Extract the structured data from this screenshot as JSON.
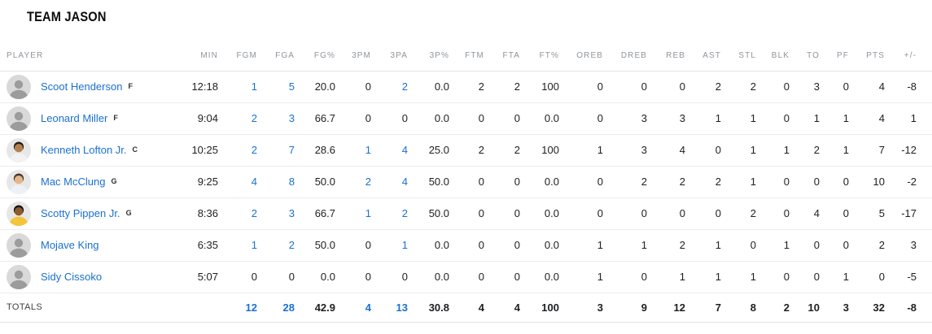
{
  "team": {
    "title": "TEAM JASON"
  },
  "colors": {
    "link_blue": "#1a70d2",
    "header_gray": "#90959b",
    "text_dark": "#1c1e21",
    "row_border": "#ececec"
  },
  "table": {
    "columns": [
      {
        "key": "player",
        "label": "PLAYER"
      },
      {
        "key": "min",
        "label": "MIN"
      },
      {
        "key": "fgm",
        "label": "FGM"
      },
      {
        "key": "fga",
        "label": "FGA"
      },
      {
        "key": "fgpct",
        "label": "FG%"
      },
      {
        "key": "tpm",
        "label": "3PM"
      },
      {
        "key": "tpa",
        "label": "3PA"
      },
      {
        "key": "tppct",
        "label": "3P%"
      },
      {
        "key": "ftm",
        "label": "FTM"
      },
      {
        "key": "fta",
        "label": "FTA"
      },
      {
        "key": "ftpct",
        "label": "FT%"
      },
      {
        "key": "oreb",
        "label": "OREB"
      },
      {
        "key": "dreb",
        "label": "DREB"
      },
      {
        "key": "reb",
        "label": "REB"
      },
      {
        "key": "ast",
        "label": "AST"
      },
      {
        "key": "stl",
        "label": "STL"
      },
      {
        "key": "blk",
        "label": "BLK"
      },
      {
        "key": "to",
        "label": "TO"
      },
      {
        "key": "pf",
        "label": "PF"
      },
      {
        "key": "pts",
        "label": "PTS"
      },
      {
        "key": "plusminus",
        "label": "+/-"
      }
    ],
    "players": [
      {
        "name": "Scoot Henderson",
        "position": "F",
        "avatar": {
          "type": "generic"
        },
        "stats": [
          "12:18",
          "1",
          "5",
          "20.0",
          "0",
          "2",
          "0.0",
          "2",
          "2",
          "100",
          "0",
          "0",
          "0",
          "2",
          "2",
          "0",
          "3",
          "0",
          "4",
          "-8"
        ]
      },
      {
        "name": "Leonard Miller",
        "position": "F",
        "avatar": {
          "type": "generic"
        },
        "stats": [
          "9:04",
          "2",
          "3",
          "66.7",
          "0",
          "0",
          "0.0",
          "0",
          "0",
          "0.0",
          "0",
          "3",
          "3",
          "1",
          "1",
          "0",
          "1",
          "1",
          "4",
          "1"
        ]
      },
      {
        "name": "Kenneth Lofton Jr.",
        "position": "C",
        "avatar": {
          "type": "photo",
          "skin": "#b5804f",
          "hair": "#1f1f1f",
          "jersey": "#f2f2f2"
        },
        "stats": [
          "10:25",
          "2",
          "7",
          "28.6",
          "1",
          "4",
          "25.0",
          "2",
          "2",
          "100",
          "1",
          "3",
          "4",
          "0",
          "1",
          "1",
          "2",
          "1",
          "7",
          "-12"
        ]
      },
      {
        "name": "Mac McClung",
        "position": "G",
        "avatar": {
          "type": "photo",
          "skin": "#e3b68c",
          "hair": "#4a3524",
          "jersey": "#eef1f6"
        },
        "stats": [
          "9:25",
          "4",
          "8",
          "50.0",
          "2",
          "4",
          "50.0",
          "0",
          "0",
          "0.0",
          "0",
          "2",
          "2",
          "2",
          "1",
          "0",
          "0",
          "0",
          "10",
          "-2"
        ]
      },
      {
        "name": "Scotty Pippen Jr.",
        "position": "G",
        "avatar": {
          "type": "photo",
          "skin": "#8d5a33",
          "hair": "#151515",
          "jersey": "#f3c53a"
        },
        "stats": [
          "8:36",
          "2",
          "3",
          "66.7",
          "1",
          "2",
          "50.0",
          "0",
          "0",
          "0.0",
          "0",
          "0",
          "0",
          "0",
          "2",
          "0",
          "4",
          "0",
          "5",
          "-17"
        ]
      },
      {
        "name": "Mojave King",
        "position": "",
        "avatar": {
          "type": "generic"
        },
        "stats": [
          "6:35",
          "1",
          "2",
          "50.0",
          "0",
          "1",
          "0.0",
          "0",
          "0",
          "0.0",
          "1",
          "1",
          "2",
          "1",
          "0",
          "1",
          "0",
          "0",
          "2",
          "3"
        ]
      },
      {
        "name": "Sidy Cissoko",
        "position": "",
        "avatar": {
          "type": "generic"
        },
        "stats": [
          "5:07",
          "0",
          "0",
          "0.0",
          "0",
          "0",
          "0.0",
          "0",
          "0",
          "0.0",
          "1",
          "0",
          "1",
          "1",
          "1",
          "0",
          "0",
          "1",
          "0",
          "-5"
        ]
      }
    ],
    "totals": {
      "label": "TOTALS",
      "stats": [
        "",
        "12",
        "28",
        "42.9",
        "4",
        "13",
        "30.8",
        "4",
        "4",
        "100",
        "3",
        "9",
        "12",
        "7",
        "8",
        "2",
        "10",
        "3",
        "32",
        "-8"
      ]
    }
  }
}
